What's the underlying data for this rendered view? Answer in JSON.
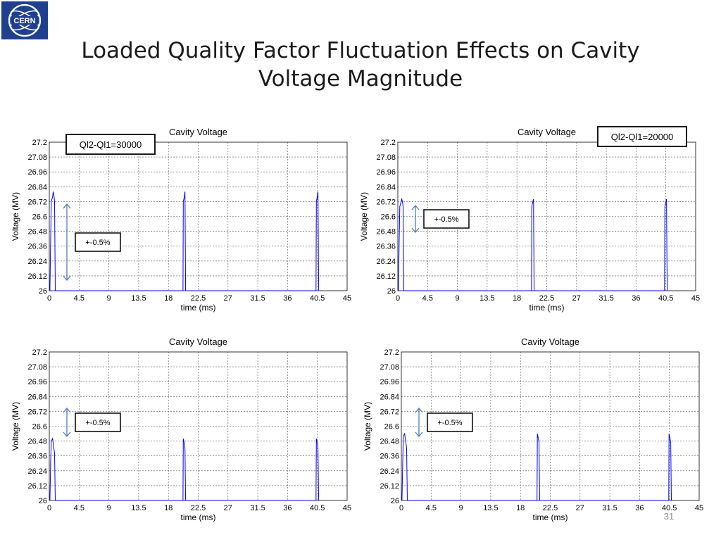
{
  "slide": {
    "title_line1": "Loaded Quality Factor Fluctuation Effects on Cavity",
    "title_line2": "Voltage Magnitude",
    "page_number": "31",
    "logo_text": "CERN"
  },
  "chart_data": [
    {
      "type": "line",
      "title": "Cavity Voltage",
      "xlabel": "time (ms)",
      "ylabel": "Voltage (MV)",
      "xlim": [
        0,
        45
      ],
      "ylim": [
        26,
        27.2
      ],
      "xticks": [
        "0",
        "4.5",
        "9",
        "13.5",
        "18",
        "22.5",
        "27",
        "31.5",
        "36",
        "40.5",
        "45"
      ],
      "yticks": [
        "26",
        "26.12",
        "26.24",
        "26.36",
        "26.48",
        "26.6",
        "26.72",
        "26.84",
        "26.96",
        "27.08",
        "27.2"
      ],
      "grid": true,
      "annotation": "Ql2-Ql1=30000",
      "range_label": "+-0.5%",
      "series": [
        {
          "color": "#0000ff",
          "x": [
            0.1,
            0.2,
            0.3,
            0.5,
            0.6,
            0.7,
            0.8,
            0.9,
            20.2,
            20.25,
            20.4,
            20.5,
            20.6,
            40.3,
            40.35,
            40.5,
            40.6,
            40.7
          ],
          "y": [
            26,
            26.4,
            26.72,
            26.76,
            26.8,
            26.77,
            26.72,
            26,
            26,
            26.72,
            26.76,
            26.8,
            26,
            26,
            26.72,
            26.76,
            26.8,
            26
          ]
        }
      ]
    },
    {
      "type": "line",
      "title": "Cavity Voltage",
      "xlabel": "time (ms)",
      "ylabel": "Voltage (MV)",
      "xlim": [
        0,
        45
      ],
      "ylim": [
        26,
        27.2
      ],
      "xticks": [
        "0",
        "4.5",
        "9",
        "13.5",
        "18",
        "22.5",
        "27",
        "31.5",
        "36",
        "40.5",
        "45"
      ],
      "yticks": [
        "26",
        "26.12",
        "26.24",
        "26.36",
        "26.48",
        "26.6",
        "26.72",
        "26.84",
        "26.96",
        "27.08",
        "27.2"
      ],
      "grid": true,
      "annotation": "Ql2-Ql1=20000",
      "range_label": "+-0.5%",
      "series": [
        {
          "color": "#0000ff",
          "x": [
            0.1,
            0.2,
            0.3,
            0.5,
            0.6,
            0.7,
            0.8,
            0.9,
            20.2,
            20.25,
            20.4,
            20.5,
            20.6,
            40.3,
            40.35,
            40.5,
            40.6,
            40.7
          ],
          "y": [
            26,
            26.4,
            26.68,
            26.72,
            26.74,
            26.72,
            26.68,
            26,
            26,
            26.68,
            26.72,
            26.74,
            26,
            26,
            26.68,
            26.72,
            26.74,
            26
          ]
        }
      ]
    },
    {
      "type": "line",
      "title": "Cavity Voltage",
      "xlabel": "time (ms)",
      "ylabel": "Voltage (MV)",
      "xlim": [
        0,
        45
      ],
      "ylim": [
        26,
        27.2
      ],
      "xticks": [
        "0",
        "4.5",
        "9",
        "13.5",
        "18",
        "22.5",
        "27",
        "31.5",
        "36",
        "40.5",
        "45"
      ],
      "yticks": [
        "26",
        "26.12",
        "26.24",
        "26.36",
        "26.48",
        "26.6",
        "26.72",
        "26.84",
        "26.96",
        "27.08",
        "27.2"
      ],
      "grid": true,
      "annotation": "",
      "range_label": "+-0.5%",
      "series": [
        {
          "color": "#0000ff",
          "x": [
            0.1,
            0.2,
            0.3,
            0.5,
            0.6,
            0.7,
            0.8,
            0.9,
            20.2,
            20.25,
            20.4,
            20.5,
            20.6,
            40.3,
            40.35,
            40.5,
            40.6,
            40.7
          ],
          "y": [
            26,
            26.3,
            26.48,
            26.5,
            26.46,
            26.42,
            26.38,
            26,
            26,
            26.5,
            26.46,
            26.42,
            26,
            26,
            26.5,
            26.46,
            26.42,
            26
          ]
        }
      ]
    },
    {
      "type": "line",
      "title": "Cavity Voltage",
      "xlabel": "time (ms)",
      "ylabel": "Voltage (MV)",
      "xlim": [
        0,
        45
      ],
      "ylim": [
        26,
        27.2
      ],
      "xticks": [
        "0",
        "4.5",
        "9",
        "13.5",
        "18",
        "22.5",
        "27",
        "31.5",
        "36",
        "40.5",
        "45"
      ],
      "yticks": [
        "26",
        "26.12",
        "26.24",
        "26.36",
        "26.48",
        "26.6",
        "26.72",
        "26.84",
        "26.96",
        "27.08",
        "27.2"
      ],
      "grid": true,
      "annotation": "",
      "range_label": "+-0.5%",
      "series": [
        {
          "color": "#0000ff",
          "x": [
            0.1,
            0.2,
            0.3,
            0.5,
            0.6,
            0.7,
            0.8,
            0.9,
            20.5,
            20.55,
            20.7,
            20.8,
            20.9,
            40.4,
            40.45,
            40.6,
            40.7,
            40.8
          ],
          "y": [
            26,
            26.3,
            26.52,
            26.54,
            26.5,
            26.46,
            26.42,
            26,
            26,
            26.54,
            26.5,
            26.47,
            26,
            26,
            26.54,
            26.5,
            26.47,
            26
          ]
        }
      ]
    }
  ]
}
